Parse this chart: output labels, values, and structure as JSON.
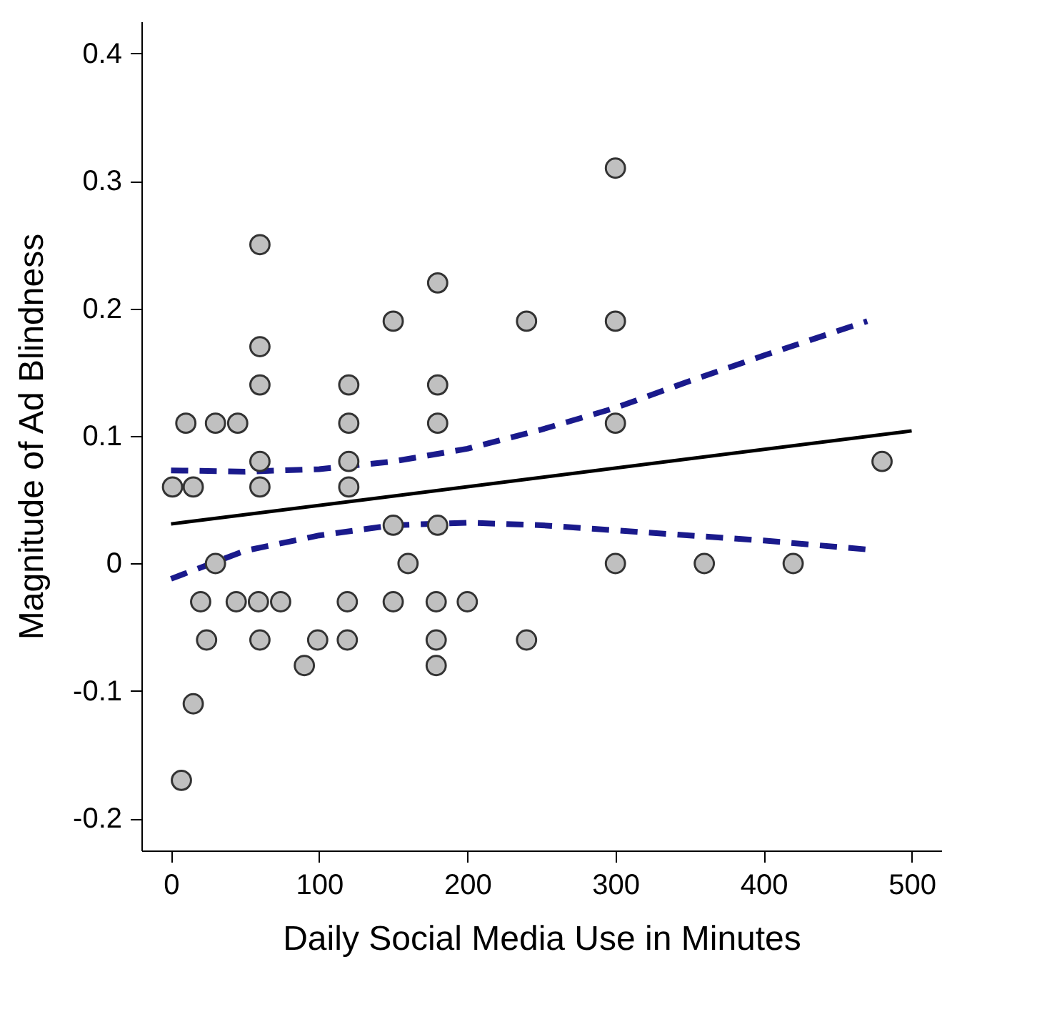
{
  "chart_data": {
    "type": "scatter",
    "xlabel": "Daily Social Media Use in Minutes",
    "ylabel": "Magnitude of Ad Blindness",
    "xlim": [
      -20,
      520
    ],
    "ylim": [
      -0.225,
      0.425
    ],
    "xticks": [
      0,
      100,
      200,
      300,
      400,
      500
    ],
    "yticks": [
      -0.2,
      -0.1,
      0,
      0.1,
      0.2,
      0.3,
      0.4
    ],
    "grid": false,
    "series": [
      {
        "marker": "circle",
        "color": "#c0c0c0",
        "x": [
          7,
          15,
          1,
          15,
          10,
          30,
          45,
          60,
          60,
          60,
          120,
          180,
          120,
          180,
          60,
          120,
          60,
          120,
          150,
          240,
          300,
          180,
          300,
          150,
          180,
          30,
          160,
          300,
          360,
          420,
          20,
          44,
          59,
          74,
          119,
          150,
          179,
          200,
          24,
          60,
          99,
          119,
          179,
          240,
          90,
          179,
          300,
          480
        ],
        "values": [
          -0.17,
          -0.11,
          0.06,
          0.06,
          0.11,
          0.11,
          0.11,
          0.25,
          0.17,
          0.14,
          0.14,
          0.14,
          0.11,
          0.11,
          0.08,
          0.08,
          0.06,
          0.06,
          0.19,
          0.19,
          0.19,
          0.22,
          0.31,
          0.03,
          0.03,
          0,
          0,
          0,
          0,
          0,
          -0.03,
          -0.03,
          -0.03,
          -0.03,
          -0.03,
          -0.03,
          -0.03,
          -0.03,
          -0.06,
          -0.06,
          -0.06,
          -0.06,
          -0.06,
          -0.06,
          -0.08,
          -0.08,
          0.11,
          0.08
        ]
      },
      {
        "type": "line",
        "color": "#000000",
        "line_style": "solid",
        "x": [
          0,
          500
        ],
        "values": [
          0.031,
          0.104
        ]
      },
      {
        "type": "line",
        "color": "#1a1a8c",
        "line_style": "dashed",
        "x": [
          0,
          50,
          100,
          150,
          200,
          250,
          300,
          350,
          400,
          470
        ],
        "values": [
          0.073,
          0.072,
          0.074,
          0.08,
          0.09,
          0.105,
          0.122,
          0.143,
          0.163,
          0.19
        ]
      },
      {
        "type": "line",
        "color": "#1a1a8c",
        "line_style": "dashed",
        "x": [
          0,
          50,
          100,
          150,
          200,
          250,
          300,
          350,
          400,
          470
        ],
        "values": [
          -0.012,
          0.01,
          0.022,
          0.03,
          0.032,
          0.03,
          0.026,
          0.022,
          0.018,
          0.011
        ]
      }
    ]
  }
}
